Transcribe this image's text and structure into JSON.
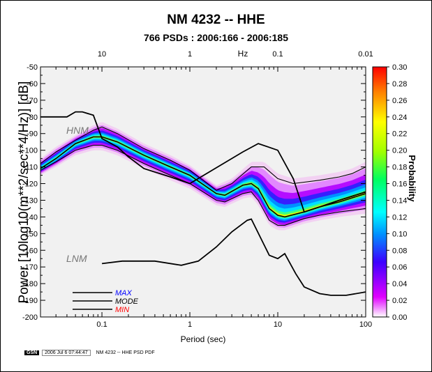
{
  "chart_data": {
    "type": "heatmap",
    "title": "NM 4232 -- HHE",
    "subtitle": "766 PSDs : 2006:166 - 2006:185",
    "xlabel": "Period (sec)",
    "ylabel": "Power [10log10(m**2/sec**4/Hz)] [dB]",
    "top_axis_label": "Hz",
    "x_scale": "log",
    "xlim": [
      0.02,
      100
    ],
    "ylim": [
      -200,
      -50
    ],
    "x_ticks": [
      "0.1",
      "1",
      "10",
      "100"
    ],
    "x_top_ticks": [
      "10",
      "1",
      "0.1",
      "0.01"
    ],
    "y_ticks": [
      "-50",
      "-60",
      "-70",
      "-80",
      "-90",
      "-100",
      "-110",
      "-120",
      "-130",
      "-140",
      "-150",
      "-160",
      "-170",
      "-180",
      "-190",
      "-200"
    ],
    "colorbar": {
      "label": "Probability",
      "range": [
        0.0,
        0.3
      ],
      "ticks": [
        "0.00",
        "0.02",
        "0.04",
        "0.06",
        "0.08",
        "0.10",
        "0.12",
        "0.14",
        "0.16",
        "0.18",
        "0.20",
        "0.22",
        "0.24",
        "0.26",
        "0.28",
        "0.30"
      ]
    },
    "annotations": [
      "HNM",
      "LNM"
    ],
    "legend": [
      {
        "name": "MAX",
        "color": "#0000ff"
      },
      {
        "name": "MODE",
        "color": "#000000"
      },
      {
        "name": "MIN",
        "color": "#ff0000"
      }
    ],
    "series": [
      {
        "name": "HNM",
        "x": [
          0.02,
          0.04,
          0.05,
          0.06,
          0.08,
          0.1,
          0.15,
          0.2,
          0.3,
          0.6,
          1,
          4,
          6,
          10,
          15,
          20,
          30,
          50,
          100
        ],
        "y": [
          -80,
          -80,
          -77,
          -77,
          -79,
          -93,
          -98,
          -104,
          -111,
          -116,
          -120,
          -101,
          -96,
          -100,
          -117,
          -137,
          -134,
          -130,
          -125
        ]
      },
      {
        "name": "LNM",
        "x": [
          0.1,
          0.17,
          0.4,
          0.8,
          1.25,
          2,
          3,
          4.5,
          5,
          8,
          10,
          12,
          16,
          20,
          30,
          40,
          60,
          100
        ],
        "y": [
          -168,
          -166.5,
          -166.5,
          -169,
          -166.5,
          -158,
          -149,
          -142,
          -141.3,
          -163,
          -165,
          -162,
          -174,
          -182,
          -186,
          -187,
          -187,
          -185
        ]
      },
      {
        "name": "MAX",
        "x": [
          0.02,
          0.03,
          0.05,
          0.08,
          0.1,
          0.15,
          0.3,
          0.6,
          1,
          2,
          3,
          5,
          7,
          10,
          15,
          30,
          50,
          70,
          100
        ],
        "y": [
          -108,
          -101,
          -94,
          -88,
          -86,
          -90,
          -99,
          -106,
          -112,
          -124,
          -120,
          -110,
          -110,
          -117,
          -120,
          -118,
          -116,
          -114,
          -110
        ]
      },
      {
        "name": "MODE",
        "x": [
          0.02,
          0.03,
          0.05,
          0.08,
          0.1,
          0.15,
          0.3,
          0.6,
          1,
          2,
          2.5,
          4,
          5,
          6,
          8,
          10,
          12,
          20,
          30,
          50,
          100
        ],
        "y": [
          -111,
          -105,
          -96,
          -92,
          -92,
          -95,
          -103,
          -110,
          -115,
          -126,
          -127,
          -121,
          -120,
          -123,
          -135,
          -139,
          -140,
          -137,
          -134,
          -131,
          -126
        ]
      },
      {
        "name": "MIN",
        "x": [
          0.02,
          0.03,
          0.05,
          0.08,
          0.1,
          0.15,
          0.3,
          0.6,
          1,
          2,
          2.5,
          4,
          5,
          6,
          8,
          10,
          12,
          20,
          30,
          50,
          100
        ],
        "y": [
          -112,
          -107,
          -100,
          -97,
          -97,
          -100,
          -108,
          -115,
          -120,
          -130,
          -131,
          -126,
          -125,
          -130,
          -142,
          -145,
          -145,
          -141,
          -139,
          -137,
          -135
        ]
      }
    ]
  },
  "footer": {
    "logo_text": "GSN",
    "timestamp": "2006 Jul  6 07:44:47",
    "caption": "NM 4232 -- HHE PSD PDF"
  }
}
